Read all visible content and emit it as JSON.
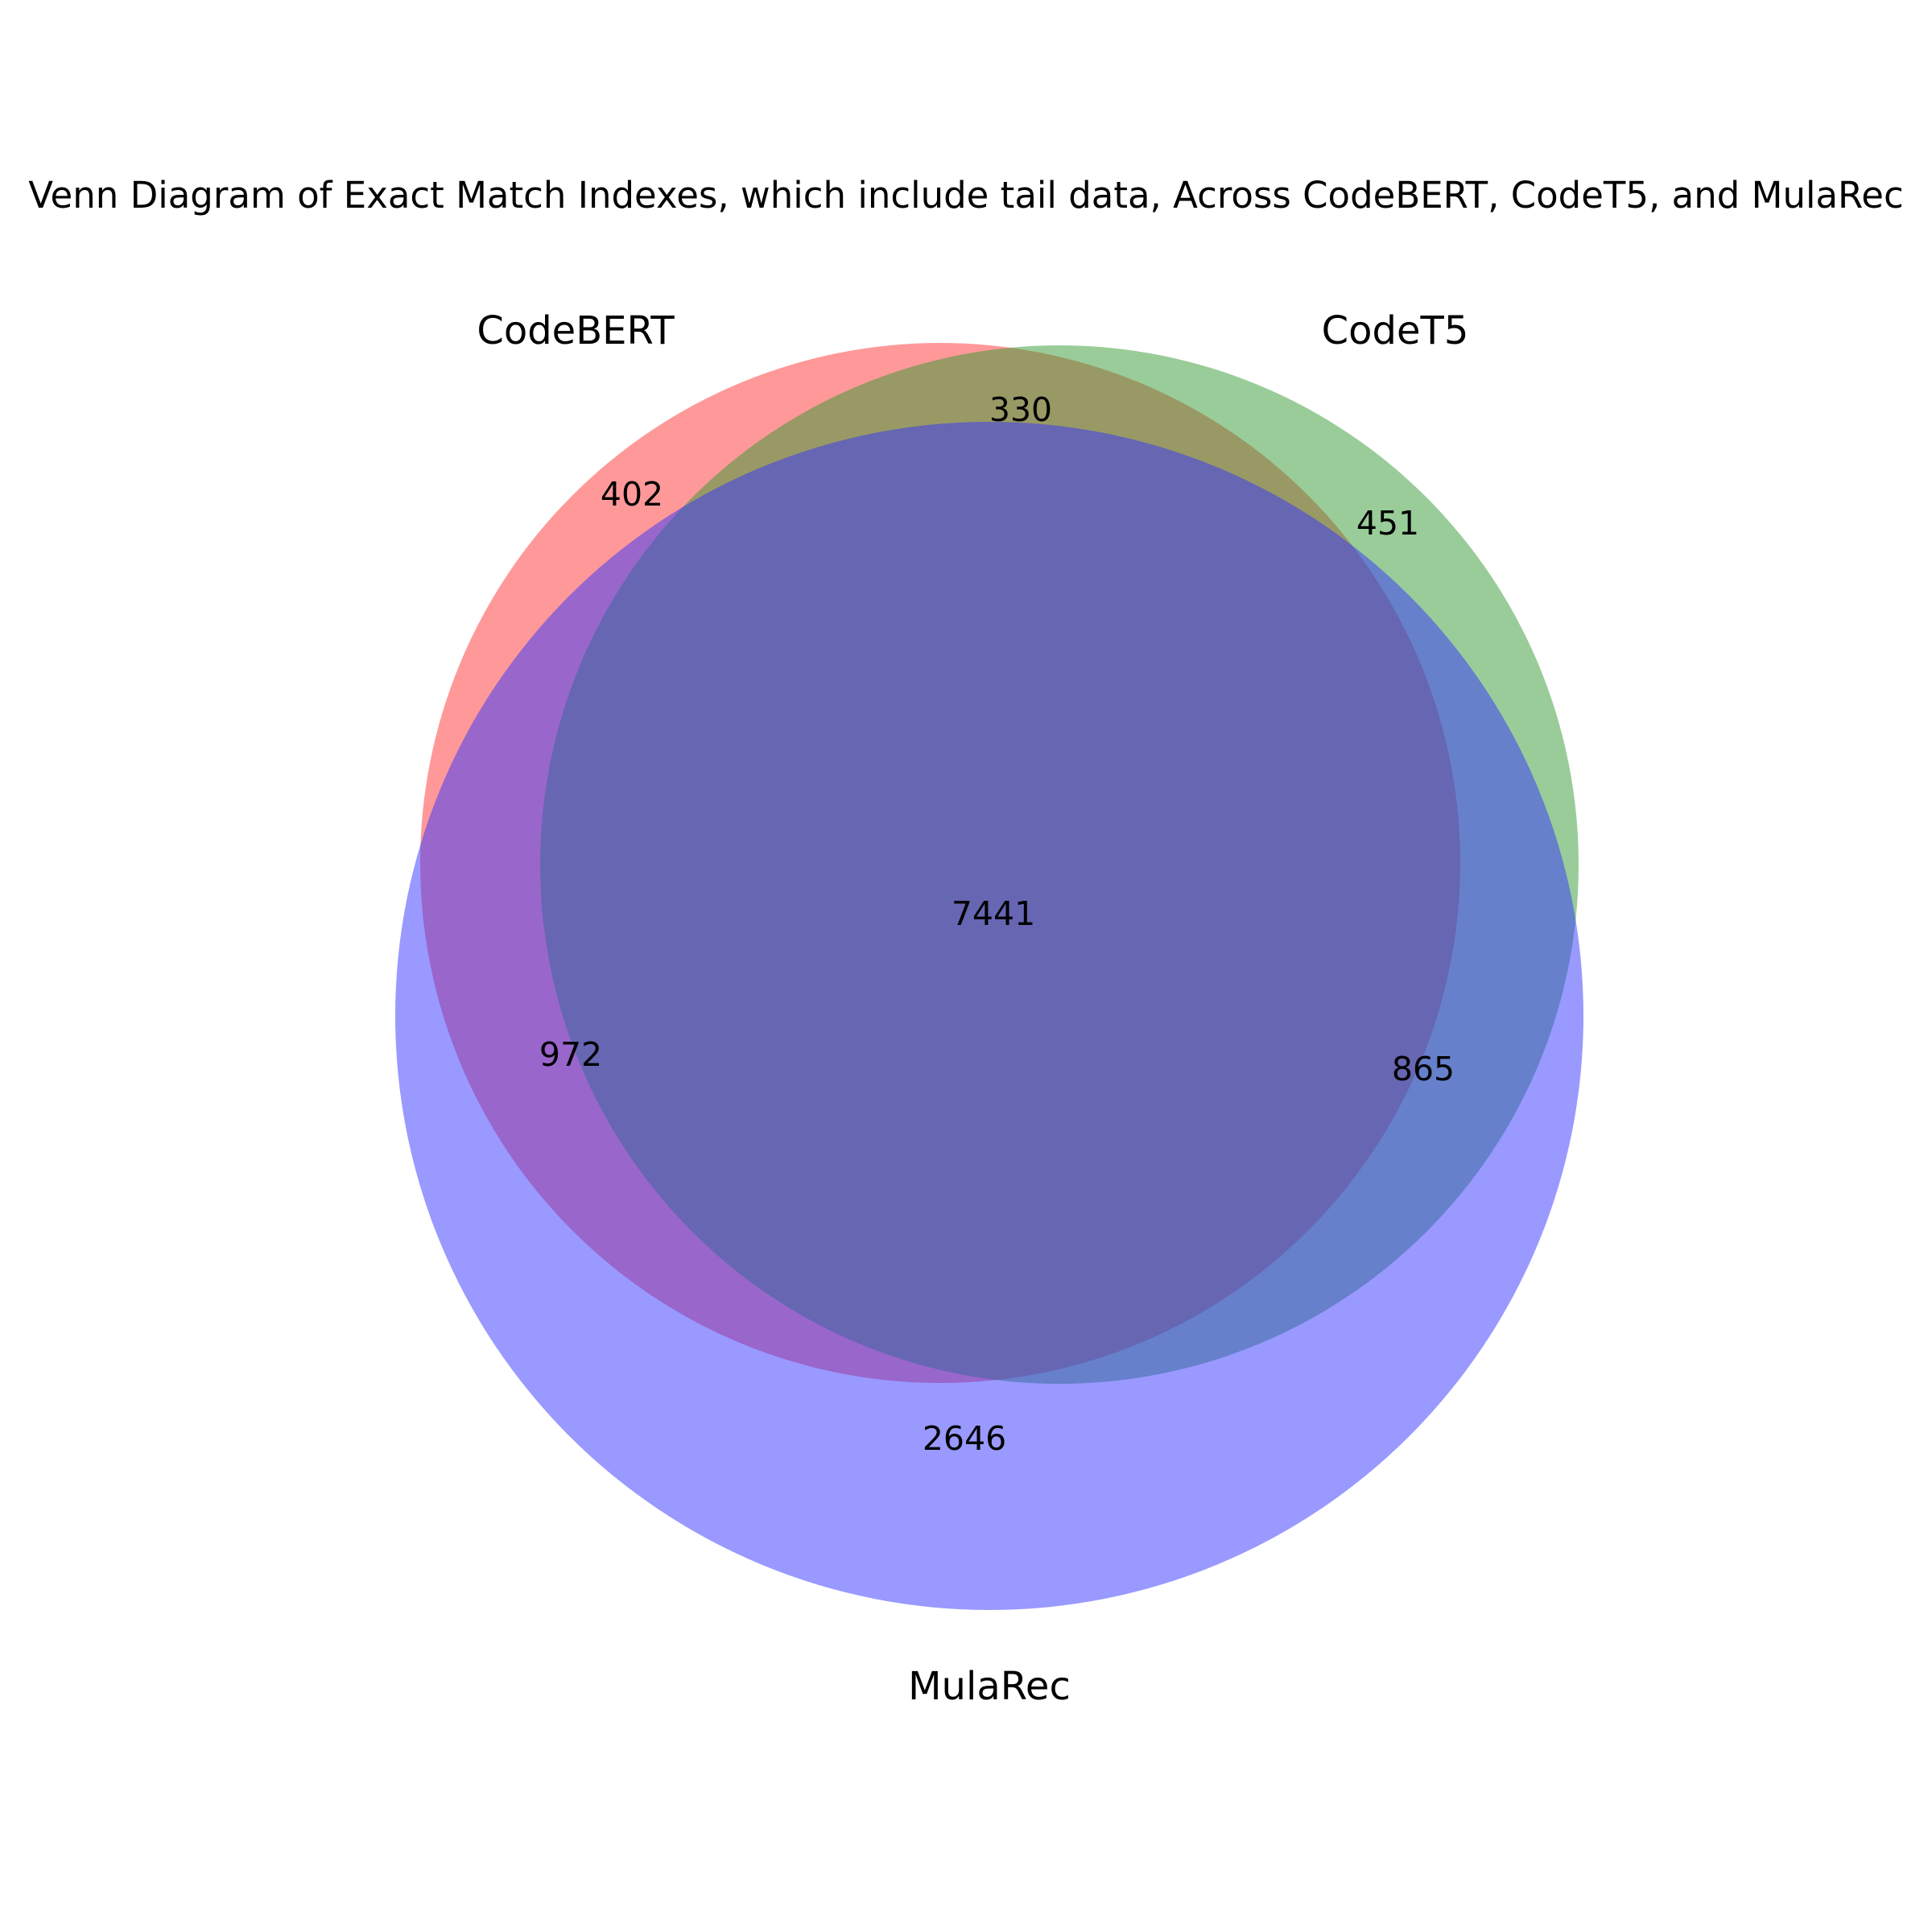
{
  "title": "Venn Diagram of Exact Match Indexes, which include tail data, Across CodeBERT, CodeT5, and MulaRec",
  "sets": [
    {
      "key": "codebert",
      "name": "CodeBERT",
      "color": "#ff3333"
    },
    {
      "key": "codet5",
      "name": "CodeT5",
      "color": "#339933"
    },
    {
      "key": "mularec",
      "name": "MulaRec",
      "color": "#3333ff"
    }
  ],
  "alpha": 0.5,
  "chart_data": {
    "type": "venn3",
    "sets": [
      "CodeBERT",
      "CodeT5",
      "MulaRec"
    ],
    "regions": {
      "codebert_only": 402,
      "codet5_only": 451,
      "mularec_only": 2646,
      "codebert_codet5_only": 330,
      "codebert_mularec_only": 972,
      "codet5_mularec_only": 865,
      "all_three": 7441
    }
  }
}
